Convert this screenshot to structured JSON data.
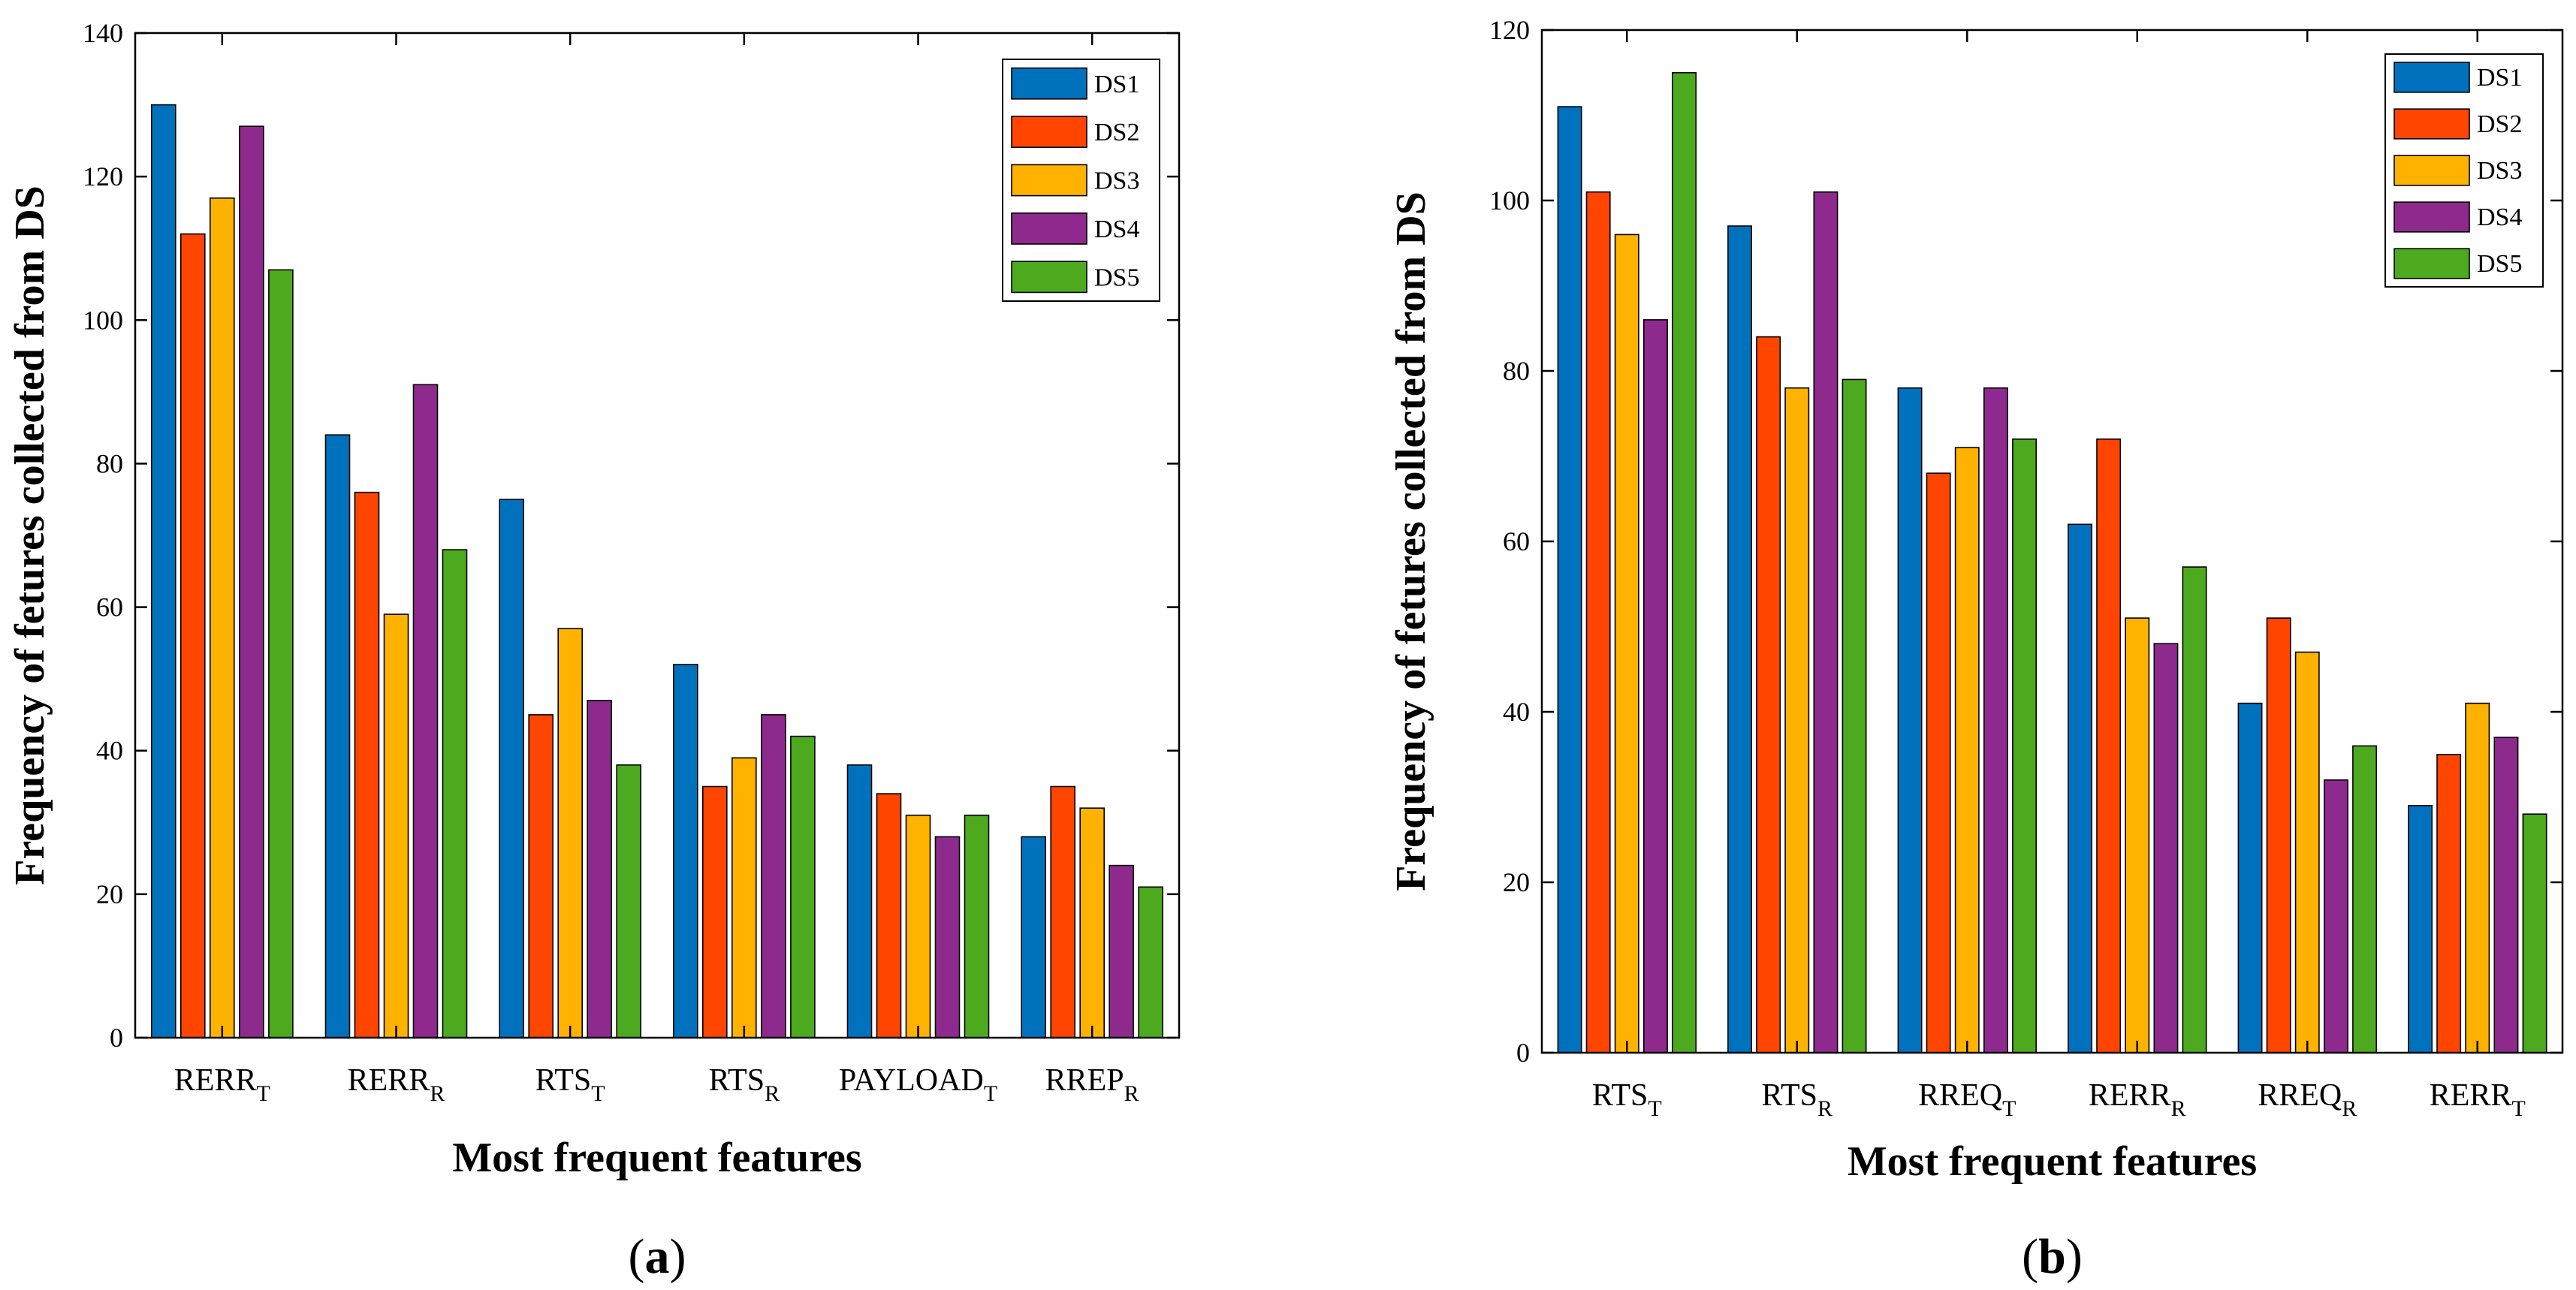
{
  "series_colors": [
    "#0072BD",
    "#FF4500",
    "#FFB300",
    "#8E2A8E",
    "#4DAA1E"
  ],
  "chart_data": [
    {
      "type": "bar",
      "panel_label": "a",
      "xlabel": "Most frequent features",
      "ylabel": "Frequency of fetures collected from DS",
      "ylim": [
        0,
        140
      ],
      "yticks": [
        0,
        20,
        40,
        60,
        80,
        100,
        120,
        140
      ],
      "legend_position": "top-right",
      "categories": [
        {
          "main": "RERR",
          "sub": "T"
        },
        {
          "main": "RERR",
          "sub": "R"
        },
        {
          "main": "RTS",
          "sub": "T"
        },
        {
          "main": "RTS",
          "sub": "R"
        },
        {
          "main": "PAYLOAD",
          "sub": "T"
        },
        {
          "main": "RREP",
          "sub": "R"
        }
      ],
      "series": [
        {
          "name": "DS1",
          "values": [
            130,
            84,
            75,
            52,
            38,
            28
          ]
        },
        {
          "name": "DS2",
          "values": [
            112,
            76,
            45,
            35,
            34,
            35
          ]
        },
        {
          "name": "DS3",
          "values": [
            117,
            59,
            57,
            39,
            31,
            32
          ]
        },
        {
          "name": "DS4",
          "values": [
            127,
            91,
            47,
            45,
            28,
            24
          ]
        },
        {
          "name": "DS5",
          "values": [
            107,
            68,
            38,
            42,
            31,
            21
          ]
        }
      ]
    },
    {
      "type": "bar",
      "panel_label": "b",
      "xlabel": "Most frequent features",
      "ylabel": "Frequency of fetures collected from DS",
      "ylim": [
        0,
        120
      ],
      "yticks": [
        0,
        20,
        40,
        60,
        80,
        100,
        120
      ],
      "legend_position": "top-right",
      "categories": [
        {
          "main": "RTS",
          "sub": "T"
        },
        {
          "main": "RTS",
          "sub": "R"
        },
        {
          "main": "RREQ",
          "sub": "T"
        },
        {
          "main": "RERR",
          "sub": "R"
        },
        {
          "main": "RREQ",
          "sub": "R"
        },
        {
          "main": "RERR",
          "sub": "T"
        }
      ],
      "series": [
        {
          "name": "DS1",
          "values": [
            111,
            97,
            78,
            62,
            41,
            29
          ]
        },
        {
          "name": "DS2",
          "values": [
            101,
            84,
            68,
            72,
            51,
            35
          ]
        },
        {
          "name": "DS3",
          "values": [
            96,
            78,
            71,
            51,
            47,
            41
          ]
        },
        {
          "name": "DS4",
          "values": [
            86,
            101,
            78,
            48,
            32,
            37
          ]
        },
        {
          "name": "DS5",
          "values": [
            115,
            79,
            72,
            57,
            36,
            28
          ]
        }
      ]
    }
  ]
}
